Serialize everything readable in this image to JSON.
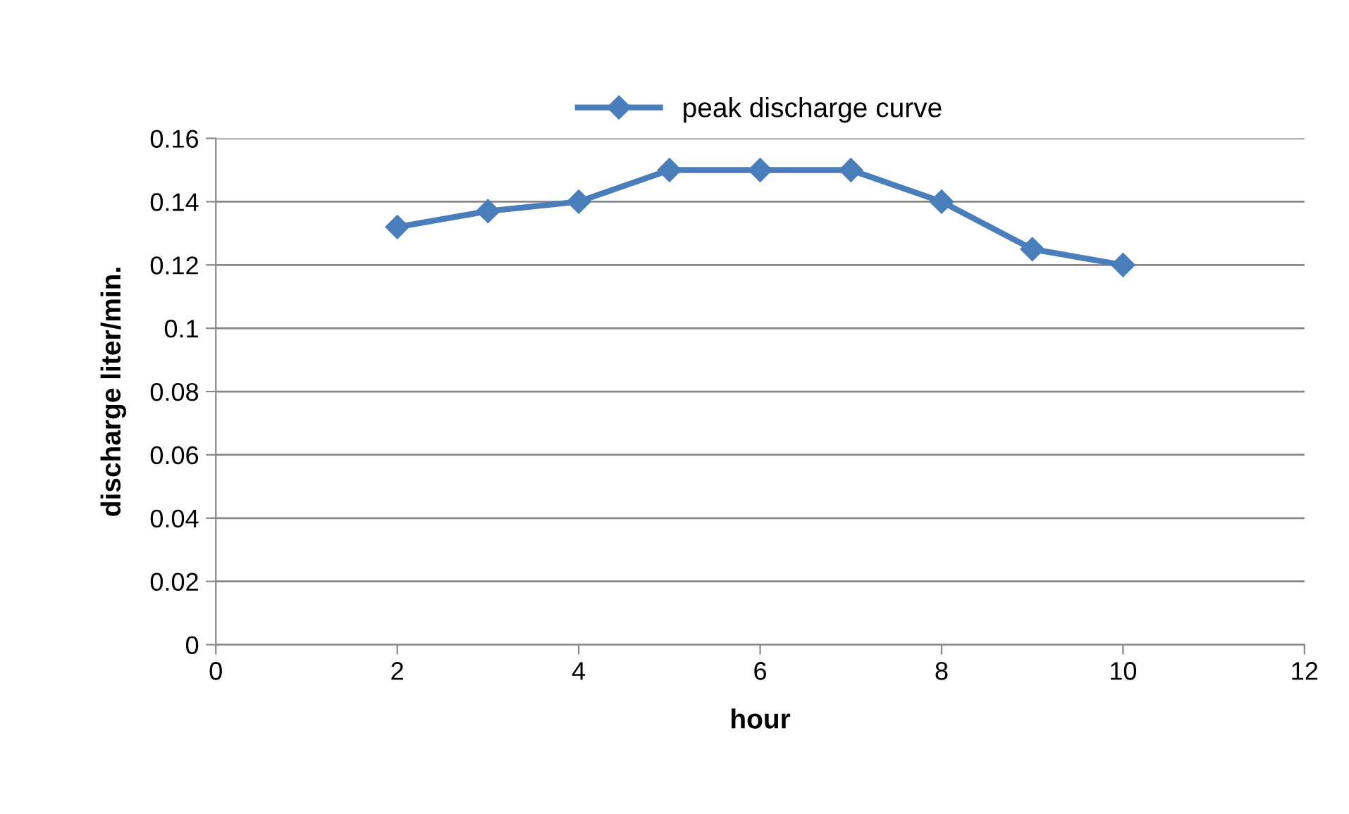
{
  "chart_data": {
    "type": "line",
    "xlabel": "hour",
    "ylabel": "discharge liter/min.",
    "x": [
      2,
      3,
      4,
      5,
      6,
      7,
      8,
      9,
      10
    ],
    "series": [
      {
        "name": "peak discharge curve",
        "color": "#4a7ebb",
        "values": [
          0.132,
          0.137,
          0.14,
          0.15,
          0.15,
          0.15,
          0.14,
          0.125,
          0.12
        ]
      }
    ],
    "xlim": [
      0,
      12
    ],
    "xticks": [
      0,
      2,
      4,
      6,
      8,
      10,
      12
    ],
    "ylim": [
      0,
      0.16
    ],
    "yticks": [
      0,
      0.02,
      0.04,
      0.06,
      0.08,
      0.1,
      0.12,
      0.14,
      0.16
    ],
    "grid": "y",
    "legend": "top",
    "marker": "diamond",
    "line_style": "solid"
  }
}
